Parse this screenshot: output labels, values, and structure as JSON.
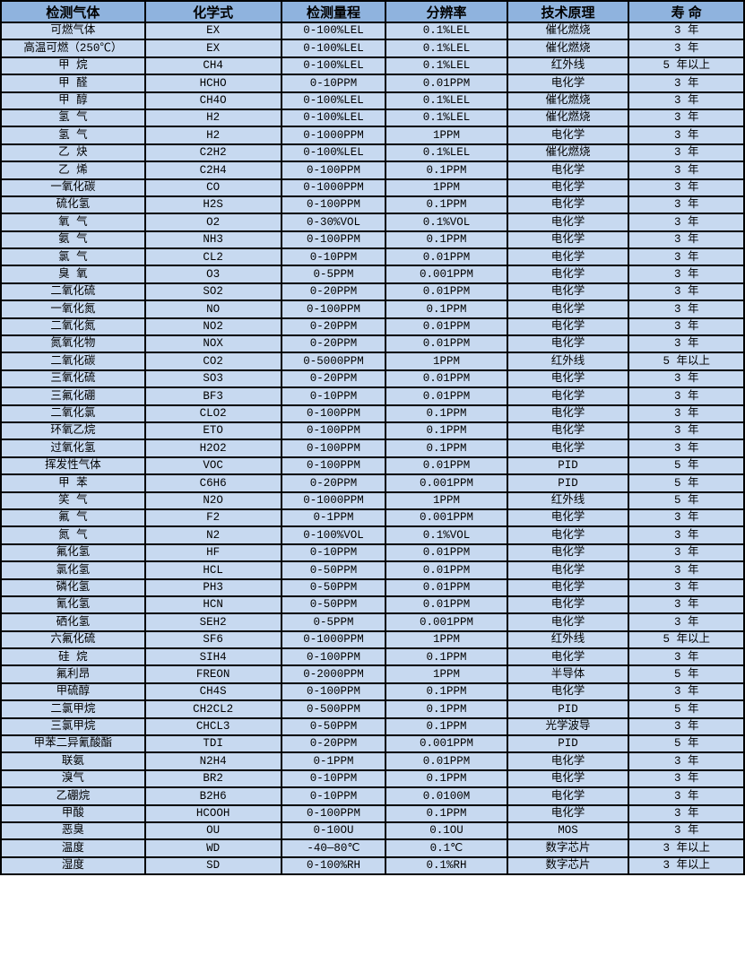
{
  "colors": {
    "header_bg": "#8fb3de",
    "row_bg": "#c7d9f0",
    "border": "#000000",
    "text": "#000000"
  },
  "table": {
    "columns": [
      "检测气体",
      "化学式",
      "检测量程",
      "分辨率",
      "技术原理",
      "寿 命"
    ],
    "rows": [
      [
        "可燃气体",
        "EX",
        "0-100%LEL",
        "0.1%LEL",
        "催化燃烧",
        "3 年"
      ],
      [
        "高温可燃（250℃）",
        "EX",
        "0-100%LEL",
        "0.1%LEL",
        "催化燃烧",
        "3 年"
      ],
      [
        "甲 烷",
        "CH4",
        "0-100%LEL",
        "0.1%LEL",
        "红外线",
        "5 年以上"
      ],
      [
        "甲 醛",
        "HCHO",
        "0-10PPM",
        "0.01PPM",
        "电化学",
        "3 年"
      ],
      [
        "甲 醇",
        "CH4O",
        "0-100%LEL",
        "0.1%LEL",
        "催化燃烧",
        "3 年"
      ],
      [
        "氢 气",
        "H2",
        "0-100%LEL",
        "0.1%LEL",
        "催化燃烧",
        "3 年"
      ],
      [
        "氢 气",
        "H2",
        "0-1000PPM",
        "1PPM",
        "电化学",
        "3 年"
      ],
      [
        "乙 炔",
        "C2H2",
        "0-100%LEL",
        "0.1%LEL",
        "催化燃烧",
        "3 年"
      ],
      [
        "乙 烯",
        "C2H4",
        "0-100PPM",
        "0.1PPM",
        "电化学",
        "3 年"
      ],
      [
        "一氧化碳",
        "CO",
        "0-1000PPM",
        "1PPM",
        "电化学",
        "3 年"
      ],
      [
        "硫化氢",
        "H2S",
        "0-100PPM",
        "0.1PPM",
        "电化学",
        "3 年"
      ],
      [
        "氧 气",
        "O2",
        "0-30%VOL",
        "0.1%VOL",
        "电化学",
        "3 年"
      ],
      [
        "氨 气",
        "NH3",
        "0-100PPM",
        "0.1PPM",
        "电化学",
        "3 年"
      ],
      [
        "氯 气",
        "CL2",
        "0-10PPM",
        "0.01PPM",
        "电化学",
        "3 年"
      ],
      [
        "臭 氧",
        "O3",
        "0-5PPM",
        "0.001PPM",
        "电化学",
        "3 年"
      ],
      [
        "二氧化硫",
        "SO2",
        "0-20PPM",
        "0.01PPM",
        "电化学",
        "3 年"
      ],
      [
        "一氧化氮",
        "NO",
        "0-100PPM",
        "0.1PPM",
        "电化学",
        "3 年"
      ],
      [
        "二氧化氮",
        "NO2",
        "0-20PPM",
        "0.01PPM",
        "电化学",
        "3 年"
      ],
      [
        "氮氧化物",
        "NOX",
        "0-20PPM",
        "0.01PPM",
        "电化学",
        "3 年"
      ],
      [
        "二氧化碳",
        "CO2",
        "0-5000PPM",
        "1PPM",
        "红外线",
        "5 年以上"
      ],
      [
        "三氧化硫",
        "SO3",
        "0-20PPM",
        "0.01PPM",
        "电化学",
        "3 年"
      ],
      [
        "三氟化硼",
        "BF3",
        "0-10PPM",
        "0.01PPM",
        "电化学",
        "3 年"
      ],
      [
        "二氧化氯",
        "CLO2",
        "0-100PPM",
        "0.1PPM",
        "电化学",
        "3 年"
      ],
      [
        "环氧乙烷",
        "ETO",
        "0-100PPM",
        "0.1PPM",
        "电化学",
        "3 年"
      ],
      [
        "过氧化氢",
        "H2O2",
        "0-100PPM",
        "0.1PPM",
        "电化学",
        "3 年"
      ],
      [
        "挥发性气体",
        "VOC",
        "0-100PPM",
        "0.01PPM",
        "PID",
        "5 年"
      ],
      [
        "甲 苯",
        "C6H6",
        "0-20PPM",
        "0.001PPM",
        "PID",
        "5 年"
      ],
      [
        "笑 气",
        "N2O",
        "0-1000PPM",
        "1PPM",
        "红外线",
        "5 年"
      ],
      [
        "氟 气",
        "F2",
        "0-1PPM",
        "0.001PPM",
        "电化学",
        "3 年"
      ],
      [
        "氮 气",
        "N2",
        "0-100%VOL",
        "0.1%VOL",
        "电化学",
        "3 年"
      ],
      [
        "氟化氢",
        "HF",
        "0-10PPM",
        "0.01PPM",
        "电化学",
        "3 年"
      ],
      [
        "氯化氢",
        "HCL",
        "0-50PPM",
        "0.01PPM",
        "电化学",
        "3 年"
      ],
      [
        "磷化氢",
        "PH3",
        "0-50PPM",
        "0.01PPM",
        "电化学",
        "3 年"
      ],
      [
        "氰化氢",
        "HCN",
        "0-50PPM",
        "0.01PPM",
        "电化学",
        "3 年"
      ],
      [
        "硒化氢",
        "SEH2",
        "0-5PPM",
        "0.001PPM",
        "电化学",
        "3 年"
      ],
      [
        "六氟化硫",
        "SF6",
        "0-1000PPM",
        "1PPM",
        "红外线",
        "5 年以上"
      ],
      [
        "硅 烷",
        "SIH4",
        "0-100PPM",
        "0.1PPM",
        "电化学",
        "3 年"
      ],
      [
        "氟利昂",
        "FREON",
        "0-2000PPM",
        "1PPM",
        "半导体",
        "5 年"
      ],
      [
        "甲硫醇",
        "CH4S",
        "0-100PPM",
        "0.1PPM",
        "电化学",
        "3 年"
      ],
      [
        "二氯甲烷",
        "CH2CL2",
        "0-500PPM",
        "0.1PPM",
        "PID",
        "5 年"
      ],
      [
        "三氯甲烷",
        "CHCL3",
        "0-50PPM",
        "0.1PPM",
        "光学波导",
        "3 年"
      ],
      [
        "甲苯二异氰酸酯",
        "TDI",
        "0-20PPM",
        "0.001PPM",
        "PID",
        "5 年"
      ],
      [
        "联氨",
        "N2H4",
        "0-1PPM",
        "0.01PPM",
        "电化学",
        "3 年"
      ],
      [
        "溴气",
        "BR2",
        "0-10PPM",
        "0.1PPM",
        "电化学",
        "3 年"
      ],
      [
        "乙硼烷",
        "B2H6",
        "0-10PPM",
        "0.0100M",
        "电化学",
        "3 年"
      ],
      [
        "甲酸",
        "HCOOH",
        "0-100PPM",
        "0.1PPM",
        "电化学",
        "3 年"
      ],
      [
        "恶臭",
        "OU",
        "0-10OU",
        "0.1OU",
        "MOS",
        "3 年"
      ],
      [
        "温度",
        "WD",
        "-40—80℃",
        "0.1℃",
        "数字芯片",
        "3 年以上"
      ],
      [
        "湿度",
        "SD",
        "0-100%RH",
        "0.1%RH",
        "数字芯片",
        "3 年以上"
      ]
    ]
  }
}
